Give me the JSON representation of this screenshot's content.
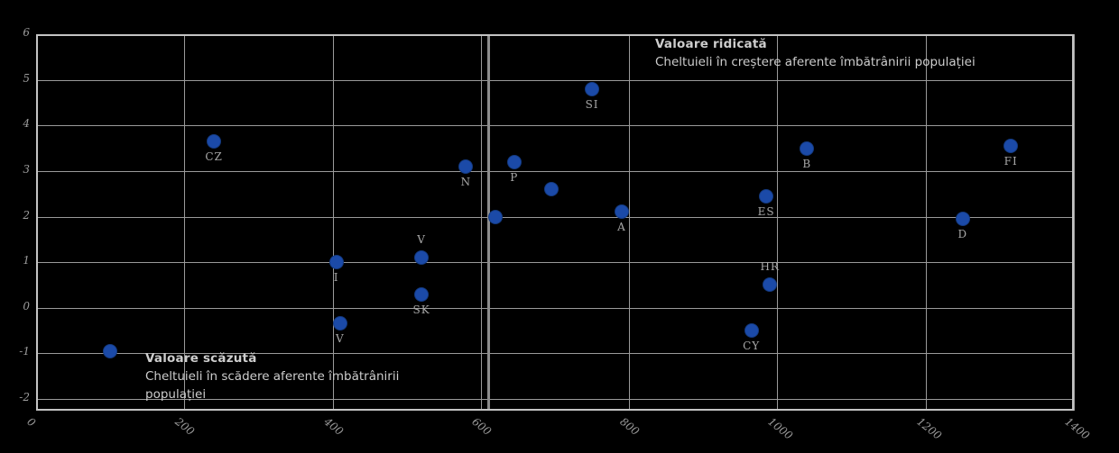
{
  "chart_data": {
    "type": "scatter",
    "title": "",
    "xlabel": "",
    "ylabel": "",
    "xlim": [
      0,
      1400
    ],
    "x_ticks": [
      "0",
      "200",
      "400",
      "600",
      "800",
      "1000",
      "1200",
      "1400"
    ],
    "x_tick_values": [
      0,
      200,
      400,
      600,
      800,
      1000,
      1200,
      1400
    ],
    "y_ticks": [
      "6",
      "5",
      "4",
      "3",
      "2",
      "1",
      "0",
      "-1",
      "-2"
    ],
    "y_tick_values": [
      6,
      5,
      4,
      3,
      2,
      1,
      0,
      -1,
      -2
    ],
    "grid": true,
    "legend": "none",
    "reference_line_x": 610,
    "marker_color": "#1b4aa8",
    "grid_color": "#9a9a9a",
    "background_color": "#000000",
    "points": [
      {
        "label": "",
        "x": 100,
        "y": -0.95,
        "label_pos": "below"
      },
      {
        "label": "CZ",
        "x": 240,
        "y": 3.65,
        "label_pos": "below"
      },
      {
        "label": "I",
        "x": 405,
        "y": 1.0,
        "label_pos": "below"
      },
      {
        "label": "V",
        "x": 410,
        "y": -0.35,
        "label_pos": "below"
      },
      {
        "label": "V",
        "x": 520,
        "y": 1.1,
        "label_pos": "above"
      },
      {
        "label": "SK",
        "x": 520,
        "y": 0.3,
        "label_pos": "below"
      },
      {
        "label": "N",
        "x": 580,
        "y": 3.1,
        "label_pos": "below"
      },
      {
        "label": "",
        "x": 620,
        "y": 2.0,
        "label_pos": "below"
      },
      {
        "label": "P",
        "x": 645,
        "y": 3.2,
        "label_pos": "below"
      },
      {
        "label": "",
        "x": 695,
        "y": 2.6,
        "label_pos": "below"
      },
      {
        "label": "SI",
        "x": 750,
        "y": 4.8,
        "label_pos": "below"
      },
      {
        "label": "A",
        "x": 790,
        "y": 2.1,
        "label_pos": "below"
      },
      {
        "label": "ES",
        "x": 985,
        "y": 2.45,
        "label_pos": "below"
      },
      {
        "label": "HR",
        "x": 990,
        "y": 0.5,
        "label_pos": "above"
      },
      {
        "label": "CY",
        "x": 965,
        "y": -0.5,
        "label_pos": "below"
      },
      {
        "label": "B",
        "x": 1040,
        "y": 3.5,
        "label_pos": "below"
      },
      {
        "label": "D",
        "x": 1250,
        "y": 1.95,
        "label_pos": "below"
      },
      {
        "label": "FI",
        "x": 1315,
        "y": 3.55,
        "label_pos": "below"
      }
    ],
    "annotations": [
      {
        "position": "top_right",
        "lines": [
          "Valoare ridicată",
          "Cheltuieli în creștere aferente îmbătrânirii populației"
        ]
      },
      {
        "position": "bottom_left",
        "lines": [
          "Valoare scăzută",
          "Cheltuieli în scădere aferente îmbătrânirii",
          "populației"
        ]
      }
    ]
  }
}
